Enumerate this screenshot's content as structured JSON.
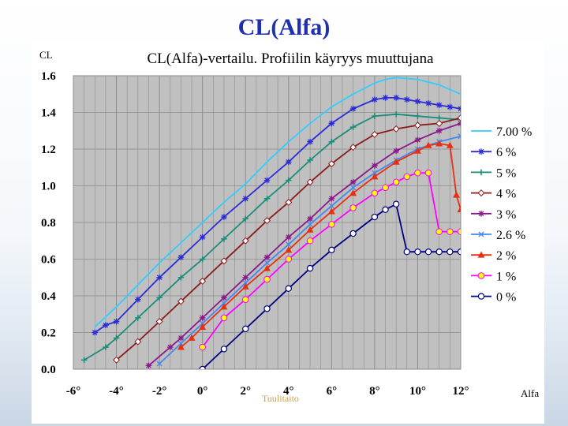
{
  "slide": {
    "title": "CL(Alfa)",
    "footer": "Tuulitaito"
  },
  "colors": {
    "title": "#1f2fb0",
    "plot_bg": "#c0c0c0",
    "grid": "#8c8c8c"
  },
  "chart_data": {
    "type": "line",
    "title": "CL(Alfa)-vertailu. Profiilin käyryys muuttujana",
    "xlabel": "Alfa",
    "ylabel": "CL",
    "xlim": [
      -6,
      12
    ],
    "ylim": [
      0,
      1.6
    ],
    "xticks": [
      -6,
      -4,
      -2,
      0,
      2,
      4,
      6,
      8,
      10,
      12
    ],
    "xtick_labels": [
      "-6°",
      "-4°",
      "-2°",
      "0°",
      "2°",
      "4°",
      "6°",
      "8°",
      "10°",
      "12°"
    ],
    "yticks": [
      0,
      0.2,
      0.4,
      0.6,
      0.8,
      1.0,
      1.2,
      1.4,
      1.6
    ],
    "ytick_labels": [
      "0.0",
      "0.2",
      "0.4",
      "0.6",
      "0.8",
      "1.0",
      "1.2",
      "1.4",
      "1.6"
    ],
    "grid": true,
    "legend_position": "right",
    "series": [
      {
        "name": "7.00 %",
        "color": "#33ccff",
        "marker": "none",
        "x": [
          -5.0,
          -4.0,
          -3.0,
          -2.0,
          -1.0,
          0.0,
          1.0,
          2.0,
          3.0,
          4.0,
          5.0,
          6.0,
          7.0,
          8.0,
          8.5,
          9.0,
          10.0,
          11.0,
          12.0
        ],
        "y": [
          0.23,
          0.34,
          0.46,
          0.58,
          0.69,
          0.8,
          0.91,
          1.01,
          1.13,
          1.24,
          1.34,
          1.43,
          1.5,
          1.56,
          1.58,
          1.59,
          1.58,
          1.55,
          1.5
        ]
      },
      {
        "name": "6 %",
        "color": "#2b2bd8",
        "marker": "star",
        "x": [
          -5.0,
          -4.5,
          -4.0,
          -3.0,
          -2.0,
          -1.0,
          0.0,
          1.0,
          2.0,
          3.0,
          4.0,
          5.0,
          6.0,
          7.0,
          8.0,
          8.5,
          9.0,
          9.5,
          10.0,
          10.5,
          11.0,
          11.5,
          12.0
        ],
        "y": [
          0.2,
          0.24,
          0.26,
          0.38,
          0.5,
          0.61,
          0.72,
          0.83,
          0.93,
          1.03,
          1.13,
          1.24,
          1.34,
          1.42,
          1.47,
          1.48,
          1.48,
          1.47,
          1.46,
          1.45,
          1.44,
          1.43,
          1.42
        ]
      },
      {
        "name": "5 %",
        "color": "#1a8c7a",
        "marker": "plus",
        "x": [
          -5.5,
          -4.5,
          -4.0,
          -3.0,
          -2.0,
          -1.0,
          0.0,
          1.0,
          2.0,
          3.0,
          4.0,
          5.0,
          6.0,
          7.0,
          8.0,
          9.0,
          10.0,
          11.0,
          12.0
        ],
        "y": [
          0.05,
          0.12,
          0.17,
          0.28,
          0.39,
          0.5,
          0.6,
          0.71,
          0.82,
          0.93,
          1.03,
          1.14,
          1.24,
          1.32,
          1.38,
          1.39,
          1.38,
          1.37,
          1.36
        ]
      },
      {
        "name": "4 %",
        "color": "#8b1a1a",
        "marker": "diamond",
        "x": [
          -4.0,
          -3.0,
          -2.0,
          -1.0,
          0.0,
          1.0,
          2.0,
          3.0,
          4.0,
          5.0,
          6.0,
          7.0,
          8.0,
          9.0,
          10.0,
          11.0,
          12.0
        ],
        "y": [
          0.05,
          0.15,
          0.26,
          0.37,
          0.48,
          0.59,
          0.7,
          0.81,
          0.91,
          1.02,
          1.12,
          1.21,
          1.28,
          1.31,
          1.33,
          1.34,
          1.37
        ]
      },
      {
        "name": "3 %",
        "color": "#8a1a8a",
        "marker": "star",
        "x": [
          -2.5,
          -1.5,
          -1.0,
          0.0,
          1.0,
          2.0,
          3.0,
          4.0,
          5.0,
          6.0,
          7.0,
          8.0,
          9.0,
          10.0,
          11.0,
          12.0
        ],
        "y": [
          0.02,
          0.12,
          0.17,
          0.28,
          0.39,
          0.5,
          0.61,
          0.72,
          0.82,
          0.93,
          1.02,
          1.11,
          1.19,
          1.25,
          1.3,
          1.34
        ]
      },
      {
        "name": "2.6 %",
        "color": "#4488ee",
        "marker": "x",
        "x": [
          -2.0,
          -1.0,
          0.0,
          1.0,
          2.0,
          3.0,
          4.0,
          5.0,
          6.0,
          7.0,
          8.0,
          9.0,
          10.0,
          11.0,
          12.0
        ],
        "y": [
          0.03,
          0.14,
          0.25,
          0.36,
          0.47,
          0.58,
          0.68,
          0.79,
          0.89,
          0.99,
          1.07,
          1.14,
          1.2,
          1.24,
          1.27
        ]
      },
      {
        "name": "2 %",
        "color": "#e83010",
        "marker": "triangle",
        "x": [
          -1.0,
          -0.5,
          0.0,
          1.0,
          2.0,
          3.0,
          4.0,
          5.0,
          6.0,
          7.0,
          8.0,
          9.0,
          10.0,
          10.5,
          11.0,
          11.5,
          11.8,
          12.0
        ],
        "y": [
          0.12,
          0.17,
          0.23,
          0.34,
          0.45,
          0.55,
          0.65,
          0.76,
          0.86,
          0.96,
          1.05,
          1.13,
          1.19,
          1.22,
          1.23,
          1.22,
          0.95,
          0.87
        ]
      },
      {
        "name": "1 %",
        "color": "#ff00ff",
        "marker": "circle",
        "x": [
          0.0,
          1.0,
          2.0,
          3.0,
          4.0,
          5.0,
          6.0,
          7.0,
          8.0,
          8.5,
          9.0,
          9.5,
          10.0,
          10.5,
          11.0,
          11.5,
          12.0
        ],
        "y": [
          0.12,
          0.28,
          0.38,
          0.49,
          0.6,
          0.7,
          0.79,
          0.88,
          0.96,
          0.99,
          1.02,
          1.05,
          1.07,
          1.07,
          0.75,
          0.75,
          0.75
        ]
      },
      {
        "name": "0 %",
        "color": "#000080",
        "marker": "circle-open",
        "x": [
          0.0,
          1.0,
          2.0,
          3.0,
          4.0,
          5.0,
          6.0,
          7.0,
          8.0,
          8.5,
          9.0,
          9.5,
          10.0,
          10.5,
          11.0,
          11.5,
          12.0
        ],
        "y": [
          0.0,
          0.11,
          0.22,
          0.33,
          0.44,
          0.55,
          0.65,
          0.74,
          0.83,
          0.87,
          0.9,
          0.64,
          0.64,
          0.64,
          0.64,
          0.64,
          0.64
        ]
      }
    ]
  }
}
